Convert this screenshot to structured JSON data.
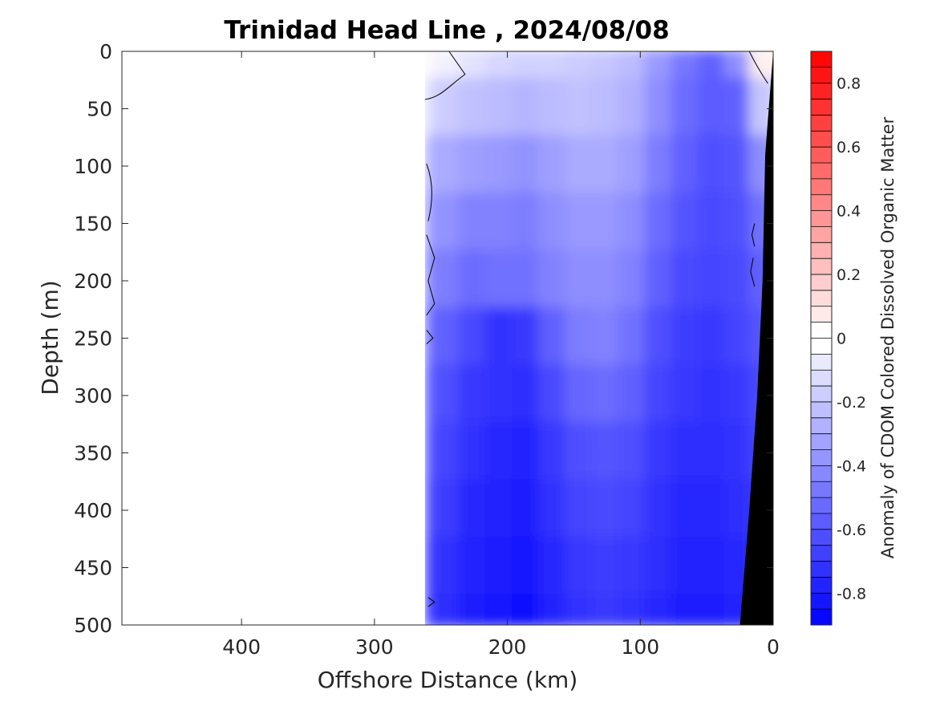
{
  "chart_data": {
    "type": "heatmap",
    "title": "Trinidad Head Line , 2024/08/08",
    "xlabel": "Offshore Distance (km)",
    "ylabel": "Depth (m)",
    "xlim": [
      490,
      0
    ],
    "ylim": [
      0,
      500
    ],
    "x_reversed": true,
    "y_reversed": true,
    "xticks": [
      400,
      300,
      200,
      100,
      0
    ],
    "xtick_labels": [
      "400",
      "300",
      "200",
      "100",
      "0"
    ],
    "yticks": [
      0,
      50,
      100,
      150,
      200,
      250,
      300,
      350,
      400,
      450,
      500
    ],
    "ytick_labels": [
      "0",
      "50",
      "100",
      "150",
      "200",
      "250",
      "300",
      "350",
      "400",
      "450",
      "500"
    ],
    "colorbar": {
      "label": "Anomaly of CDOM Colored Dissolved Organic Matter",
      "range": [
        -0.9,
        0.9
      ],
      "ticks": [
        0.8,
        0.6,
        0.4,
        0.2,
        0,
        -0.2,
        -0.4,
        -0.6,
        -0.8
      ],
      "tick_labels": [
        "0.8",
        "0.6",
        "0.4",
        "0.2",
        "0",
        "-0.2",
        "-0.4",
        "-0.6",
        "-0.8"
      ],
      "colormap": "blue-white-red",
      "low_color": "#0000ff",
      "mid_color": "#ffffff",
      "high_color": "#ff0000"
    },
    "data_extent_km": 262,
    "bottom_mask": {
      "color": "#000000",
      "boundary": [
        [
          0,
          0
        ],
        [
          6,
          90
        ],
        [
          8,
          200
        ],
        [
          12,
          300
        ],
        [
          18,
          400
        ],
        [
          25,
          500
        ]
      ]
    },
    "zero_contour_color": "#000000",
    "columns_km": [
      262,
      245,
      225,
      205,
      185,
      165,
      145,
      125,
      105,
      85,
      65,
      45,
      25,
      8
    ],
    "depths_m": [
      0,
      50,
      100,
      150,
      200,
      250,
      300,
      350,
      400,
      450,
      500
    ],
    "anomaly": [
      [
        0.02,
        -0.12,
        -0.28,
        -0.36,
        -0.44,
        -0.52,
        -0.58,
        -0.6,
        -0.64,
        -0.68,
        -0.7
      ],
      [
        -0.05,
        -0.18,
        -0.3,
        -0.38,
        -0.46,
        -0.56,
        -0.62,
        -0.66,
        -0.68,
        -0.72,
        -0.74
      ],
      [
        -0.1,
        -0.22,
        -0.34,
        -0.44,
        -0.52,
        -0.64,
        -0.7,
        -0.72,
        -0.76,
        -0.78,
        -0.8
      ],
      [
        -0.14,
        -0.24,
        -0.36,
        -0.44,
        -0.5,
        -0.72,
        -0.72,
        -0.76,
        -0.78,
        -0.8,
        -0.82
      ],
      [
        -0.16,
        -0.26,
        -0.38,
        -0.46,
        -0.5,
        -0.7,
        -0.74,
        -0.78,
        -0.8,
        -0.82,
        -0.84
      ],
      [
        -0.16,
        -0.24,
        -0.34,
        -0.4,
        -0.44,
        -0.56,
        -0.64,
        -0.7,
        -0.72,
        -0.76,
        -0.78
      ],
      [
        -0.18,
        -0.22,
        -0.3,
        -0.36,
        -0.4,
        -0.46,
        -0.54,
        -0.62,
        -0.66,
        -0.7,
        -0.72
      ],
      [
        -0.2,
        -0.24,
        -0.3,
        -0.36,
        -0.4,
        -0.44,
        -0.52,
        -0.6,
        -0.64,
        -0.68,
        -0.7
      ],
      [
        -0.24,
        -0.28,
        -0.34,
        -0.4,
        -0.44,
        -0.5,
        -0.56,
        -0.62,
        -0.66,
        -0.7,
        -0.72
      ],
      [
        -0.36,
        -0.4,
        -0.46,
        -0.52,
        -0.56,
        -0.62,
        -0.66,
        -0.7,
        -0.72,
        -0.74,
        -0.76
      ],
      [
        -0.48,
        -0.52,
        -0.56,
        -0.6,
        -0.64,
        -0.68,
        -0.7,
        -0.74,
        -0.76,
        -0.78,
        -0.8
      ],
      [
        -0.56,
        -0.58,
        -0.62,
        -0.64,
        -0.66,
        -0.7,
        -0.72,
        -0.74,
        -0.76,
        -0.78,
        -0.8
      ],
      [
        -0.4,
        -0.56,
        -0.6,
        -0.62,
        -0.64,
        -0.66,
        -0.7,
        -0.72,
        -0.74,
        -0.76,
        -0.78
      ],
      [
        0.06,
        -0.2,
        -0.4,
        -0.5,
        -0.56,
        -0.6,
        -0.64,
        -0.66,
        -0.7,
        -0.72,
        -0.74
      ]
    ]
  }
}
